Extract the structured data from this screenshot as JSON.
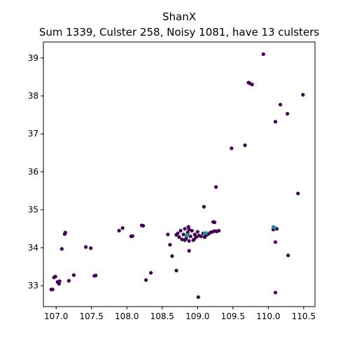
{
  "chart_data": {
    "type": "scatter",
    "title": "ShanX",
    "subtitle": "Sum 1339, Culster 258, Noisy 1081, have 13 culsters",
    "xlabel": "",
    "ylabel": "",
    "xlim": [
      106.82,
      110.66
    ],
    "ylim": [
      32.45,
      39.42
    ],
    "x_ticks": [
      "107.0",
      "107.5",
      "108.0",
      "108.5",
      "109.0",
      "109.5",
      "110.0",
      "110.5"
    ],
    "y_ticks": [
      "33",
      "34",
      "35",
      "36",
      "37",
      "38",
      "39"
    ],
    "grid": false,
    "legend": "none",
    "series": [
      {
        "role": "noise",
        "color": "#440154",
        "points": [
          [
            106.93,
            32.9
          ],
          [
            106.95,
            32.9
          ],
          [
            106.97,
            33.22
          ],
          [
            106.99,
            33.24
          ],
          [
            107.02,
            33.1
          ],
          [
            107.04,
            33.05
          ],
          [
            107.05,
            33.12
          ],
          [
            107.08,
            33.97
          ],
          [
            107.12,
            34.36
          ],
          [
            107.13,
            34.4
          ],
          [
            107.18,
            33.13
          ],
          [
            107.25,
            33.28
          ],
          [
            107.42,
            34.02
          ],
          [
            107.49,
            33.99
          ],
          [
            107.54,
            33.26
          ],
          [
            107.56,
            33.27
          ],
          [
            107.89,
            34.45
          ],
          [
            107.94,
            34.52
          ],
          [
            108.06,
            34.3
          ],
          [
            108.08,
            34.31
          ],
          [
            108.21,
            34.59
          ],
          [
            108.23,
            34.58
          ],
          [
            108.27,
            33.15
          ],
          [
            108.34,
            33.34
          ],
          [
            108.58,
            34.35
          ],
          [
            108.61,
            34.08
          ],
          [
            108.64,
            33.78
          ],
          [
            108.7,
            34.34
          ],
          [
            108.72,
            34.38
          ],
          [
            108.74,
            34.28
          ],
          [
            108.76,
            34.45
          ],
          [
            108.78,
            34.22
          ],
          [
            108.8,
            34.35
          ],
          [
            108.82,
            34.5
          ],
          [
            108.84,
            34.25
          ],
          [
            108.86,
            34.4
          ],
          [
            108.87,
            34.55
          ],
          [
            108.88,
            34.18
          ],
          [
            108.9,
            34.3
          ],
          [
            108.92,
            34.45
          ],
          [
            108.94,
            34.2
          ],
          [
            108.96,
            34.35
          ],
          [
            108.98,
            34.28
          ],
          [
            109.0,
            34.42
          ],
          [
            109.02,
            34.32
          ],
          [
            109.05,
            34.3
          ],
          [
            109.08,
            34.38
          ],
          [
            109.12,
            34.33
          ],
          [
            109.15,
            34.36
          ],
          [
            109.18,
            34.4
          ],
          [
            109.21,
            34.42
          ],
          [
            109.24,
            34.44
          ],
          [
            109.27,
            34.43
          ],
          [
            109.3,
            34.45
          ],
          [
            108.82,
            34.2
          ],
          [
            108.88,
            34.48
          ],
          [
            108.95,
            34.22
          ],
          [
            109.1,
            34.28
          ],
          [
            109.22,
            34.68
          ],
          [
            109.24,
            34.67
          ],
          [
            108.88,
            33.92
          ],
          [
            108.7,
            33.4
          ],
          [
            109.01,
            32.7
          ],
          [
            109.09,
            35.08
          ],
          [
            109.26,
            35.6
          ],
          [
            109.48,
            36.62
          ],
          [
            109.67,
            36.7
          ],
          [
            109.72,
            38.35
          ],
          [
            109.74,
            38.33
          ],
          [
            109.77,
            38.3
          ],
          [
            109.93,
            39.1
          ],
          [
            110.07,
            34.48
          ],
          [
            110.1,
            34.51
          ],
          [
            110.12,
            34.5
          ],
          [
            110.1,
            34.15
          ],
          [
            110.1,
            32.82
          ],
          [
            110.1,
            37.32
          ],
          [
            110.17,
            37.77
          ],
          [
            110.27,
            37.53
          ],
          [
            110.28,
            33.8
          ],
          [
            110.42,
            35.43
          ],
          [
            110.49,
            38.03
          ]
        ]
      },
      {
        "role": "cluster",
        "color": "#21918c",
        "points": [
          [
            108.84,
            34.32
          ],
          [
            108.86,
            34.34
          ],
          [
            109.1,
            34.38
          ],
          [
            109.12,
            34.39
          ],
          [
            110.07,
            34.55
          ],
          [
            110.09,
            34.53
          ]
        ]
      }
    ]
  }
}
